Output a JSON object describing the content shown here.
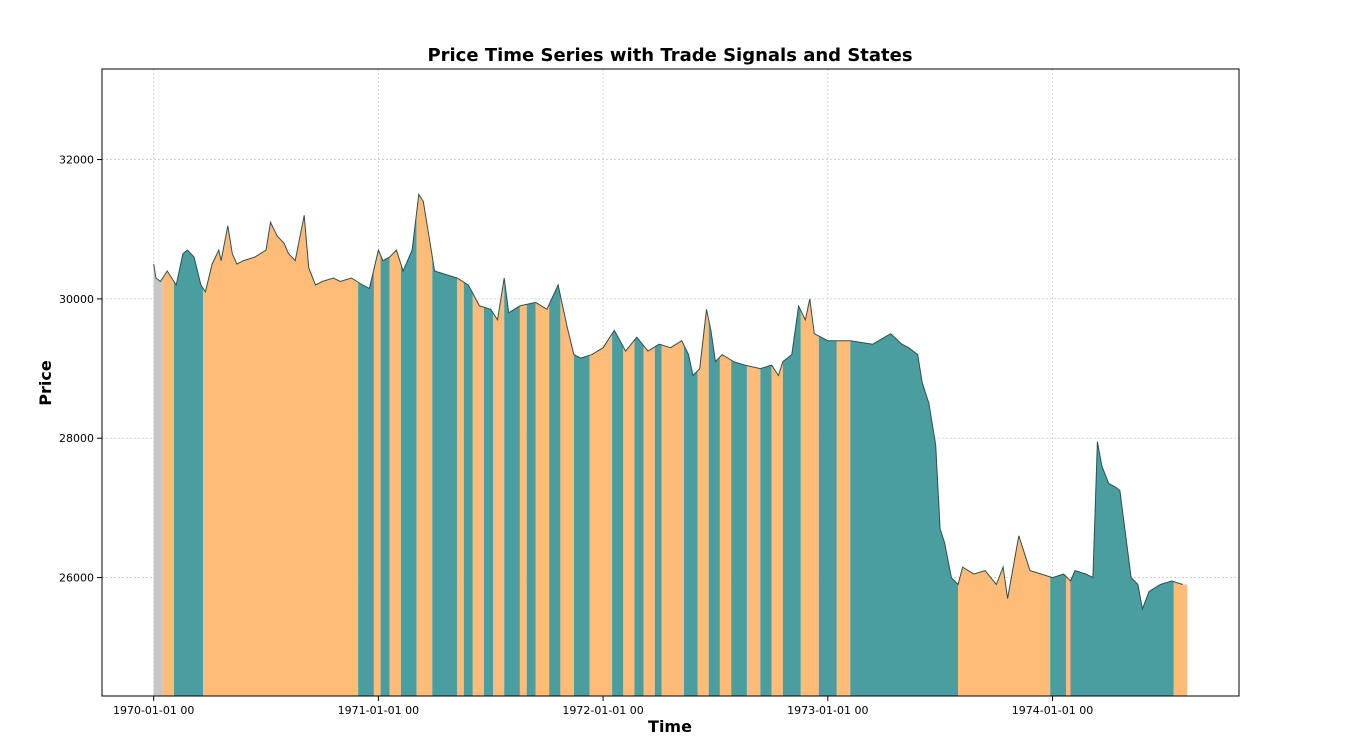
{
  "chart_data": {
    "type": "area",
    "title": "Price Time Series with Trade Signals and States",
    "xlabel": "Time",
    "ylabel": "Price",
    "x_ticks": [
      "1970-01-01 00",
      "1971-01-01 00",
      "1972-01-01 00",
      "1973-01-01 00",
      "1974-01-01 00"
    ],
    "y_ticks": [
      26000,
      28000,
      30000,
      32000
    ],
    "xlim": [
      1969.77,
      1974.83
    ],
    "ylim": [
      24300,
      33300
    ],
    "grid": true,
    "baseline": 24300,
    "state_colors": {
      "long": "#4a9ea0",
      "short": "#ffbb78",
      "neutral": "#c7c7c7"
    },
    "line_color": "#2f4f4f",
    "series": [
      {
        "name": "Price",
        "points": [
          [
            1970.0,
            30500
          ],
          [
            1970.01,
            30300
          ],
          [
            1970.03,
            30250
          ],
          [
            1970.06,
            30400
          ],
          [
            1970.1,
            30200
          ],
          [
            1970.13,
            30650
          ],
          [
            1970.15,
            30700
          ],
          [
            1970.18,
            30600
          ],
          [
            1970.21,
            30200
          ],
          [
            1970.23,
            30100
          ],
          [
            1970.26,
            30500
          ],
          [
            1970.29,
            30700
          ],
          [
            1970.3,
            30550
          ],
          [
            1970.33,
            31050
          ],
          [
            1970.35,
            30650
          ],
          [
            1970.37,
            30500
          ],
          [
            1970.4,
            30550
          ],
          [
            1970.45,
            30600
          ],
          [
            1970.5,
            30700
          ],
          [
            1970.52,
            31100
          ],
          [
            1970.55,
            30900
          ],
          [
            1970.58,
            30800
          ],
          [
            1970.6,
            30650
          ],
          [
            1970.63,
            30550
          ],
          [
            1970.67,
            31200
          ],
          [
            1970.69,
            30450
          ],
          [
            1970.72,
            30200
          ],
          [
            1970.75,
            30250
          ],
          [
            1970.8,
            30300
          ],
          [
            1970.83,
            30250
          ],
          [
            1970.88,
            30300
          ],
          [
            1970.93,
            30200
          ],
          [
            1970.96,
            30150
          ],
          [
            1971.0,
            30700
          ],
          [
            1971.02,
            30550
          ],
          [
            1971.05,
            30600
          ],
          [
            1971.08,
            30700
          ],
          [
            1971.11,
            30400
          ],
          [
            1971.15,
            30700
          ],
          [
            1971.18,
            31500
          ],
          [
            1971.2,
            31400
          ],
          [
            1971.23,
            30800
          ],
          [
            1971.25,
            30400
          ],
          [
            1971.3,
            30350
          ],
          [
            1971.35,
            30300
          ],
          [
            1971.4,
            30200
          ],
          [
            1971.45,
            29900
          ],
          [
            1971.5,
            29850
          ],
          [
            1971.53,
            29700
          ],
          [
            1971.56,
            30300
          ],
          [
            1971.58,
            29800
          ],
          [
            1971.63,
            29900
          ],
          [
            1971.7,
            29950
          ],
          [
            1971.75,
            29850
          ],
          [
            1971.8,
            30200
          ],
          [
            1971.82,
            29900
          ],
          [
            1971.84,
            29600
          ],
          [
            1971.87,
            29200
          ],
          [
            1971.9,
            29150
          ],
          [
            1971.95,
            29200
          ],
          [
            1972.0,
            29300
          ],
          [
            1972.05,
            29550
          ],
          [
            1972.1,
            29250
          ],
          [
            1972.15,
            29450
          ],
          [
            1972.2,
            29250
          ],
          [
            1972.25,
            29350
          ],
          [
            1972.3,
            29300
          ],
          [
            1972.35,
            29400
          ],
          [
            1972.38,
            29200
          ],
          [
            1972.4,
            28900
          ],
          [
            1972.43,
            29000
          ],
          [
            1972.46,
            29850
          ],
          [
            1972.48,
            29550
          ],
          [
            1972.5,
            29100
          ],
          [
            1972.53,
            29200
          ],
          [
            1972.58,
            29100
          ],
          [
            1972.63,
            29050
          ],
          [
            1972.7,
            29000
          ],
          [
            1972.75,
            29050
          ],
          [
            1972.78,
            28900
          ],
          [
            1972.8,
            29100
          ],
          [
            1972.84,
            29200
          ],
          [
            1972.87,
            29900
          ],
          [
            1972.9,
            29700
          ],
          [
            1972.92,
            30000
          ],
          [
            1972.94,
            29500
          ],
          [
            1973.0,
            29400
          ],
          [
            1973.1,
            29400
          ],
          [
            1973.2,
            29350
          ],
          [
            1973.28,
            29500
          ],
          [
            1973.33,
            29350
          ],
          [
            1973.36,
            29300
          ],
          [
            1973.4,
            29200
          ],
          [
            1973.42,
            28800
          ],
          [
            1973.45,
            28500
          ],
          [
            1973.48,
            27900
          ],
          [
            1973.5,
            26700
          ],
          [
            1973.52,
            26500
          ],
          [
            1973.55,
            26000
          ],
          [
            1973.58,
            25900
          ],
          [
            1973.6,
            26150
          ],
          [
            1973.65,
            26050
          ],
          [
            1973.7,
            26100
          ],
          [
            1973.75,
            25900
          ],
          [
            1973.78,
            26150
          ],
          [
            1973.8,
            25700
          ],
          [
            1973.85,
            26600
          ],
          [
            1973.87,
            26400
          ],
          [
            1973.9,
            26100
          ],
          [
            1973.95,
            26050
          ],
          [
            1974.0,
            26000
          ],
          [
            1974.05,
            26050
          ],
          [
            1974.08,
            25950
          ],
          [
            1974.1,
            26100
          ],
          [
            1974.15,
            26050
          ],
          [
            1974.18,
            26000
          ],
          [
            1974.2,
            27950
          ],
          [
            1974.22,
            27600
          ],
          [
            1974.25,
            27350
          ],
          [
            1974.28,
            27300
          ],
          [
            1974.3,
            27250
          ],
          [
            1974.35,
            26000
          ],
          [
            1974.38,
            25900
          ],
          [
            1974.4,
            25550
          ],
          [
            1974.43,
            25800
          ],
          [
            1974.48,
            25900
          ],
          [
            1974.53,
            25950
          ],
          [
            1974.58,
            25900
          ]
        ]
      }
    ],
    "states": [
      [
        1970.0,
        1970.04,
        "neutral"
      ],
      [
        1970.04,
        1970.09,
        "short"
      ],
      [
        1970.09,
        1970.22,
        "long"
      ],
      [
        1970.22,
        1970.91,
        "short"
      ],
      [
        1970.91,
        1970.98,
        "long"
      ],
      [
        1970.98,
        1971.01,
        "short"
      ],
      [
        1971.01,
        1971.05,
        "long"
      ],
      [
        1971.05,
        1971.1,
        "short"
      ],
      [
        1971.1,
        1971.17,
        "long"
      ],
      [
        1971.17,
        1971.24,
        "short"
      ],
      [
        1971.24,
        1971.35,
        "long"
      ],
      [
        1971.35,
        1971.38,
        "short"
      ],
      [
        1971.38,
        1971.42,
        "long"
      ],
      [
        1971.42,
        1971.47,
        "short"
      ],
      [
        1971.47,
        1971.51,
        "long"
      ],
      [
        1971.51,
        1971.56,
        "short"
      ],
      [
        1971.56,
        1971.63,
        "long"
      ],
      [
        1971.63,
        1971.66,
        "short"
      ],
      [
        1971.66,
        1971.7,
        "long"
      ],
      [
        1971.7,
        1971.76,
        "short"
      ],
      [
        1971.76,
        1971.81,
        "long"
      ],
      [
        1971.81,
        1971.87,
        "short"
      ],
      [
        1971.87,
        1971.94,
        "long"
      ],
      [
        1971.94,
        1972.04,
        "short"
      ],
      [
        1972.04,
        1972.09,
        "long"
      ],
      [
        1972.09,
        1972.14,
        "short"
      ],
      [
        1972.14,
        1972.18,
        "long"
      ],
      [
        1972.18,
        1972.23,
        "short"
      ],
      [
        1972.23,
        1972.26,
        "long"
      ],
      [
        1972.26,
        1972.36,
        "short"
      ],
      [
        1972.36,
        1972.42,
        "long"
      ],
      [
        1972.42,
        1972.47,
        "short"
      ],
      [
        1972.47,
        1972.52,
        "long"
      ],
      [
        1972.52,
        1972.57,
        "short"
      ],
      [
        1972.57,
        1972.64,
        "long"
      ],
      [
        1972.64,
        1972.7,
        "short"
      ],
      [
        1972.7,
        1972.75,
        "long"
      ],
      [
        1972.75,
        1972.8,
        "short"
      ],
      [
        1972.8,
        1972.88,
        "long"
      ],
      [
        1972.88,
        1972.96,
        "short"
      ],
      [
        1972.96,
        1973.04,
        "long"
      ],
      [
        1973.04,
        1973.1,
        "short"
      ],
      [
        1973.1,
        1973.58,
        "long"
      ],
      [
        1973.58,
        1973.99,
        "short"
      ],
      [
        1973.99,
        1974.06,
        "long"
      ],
      [
        1974.06,
        1974.08,
        "short"
      ],
      [
        1974.08,
        1974.54,
        "long"
      ],
      [
        1974.54,
        1974.6,
        "short"
      ]
    ]
  }
}
